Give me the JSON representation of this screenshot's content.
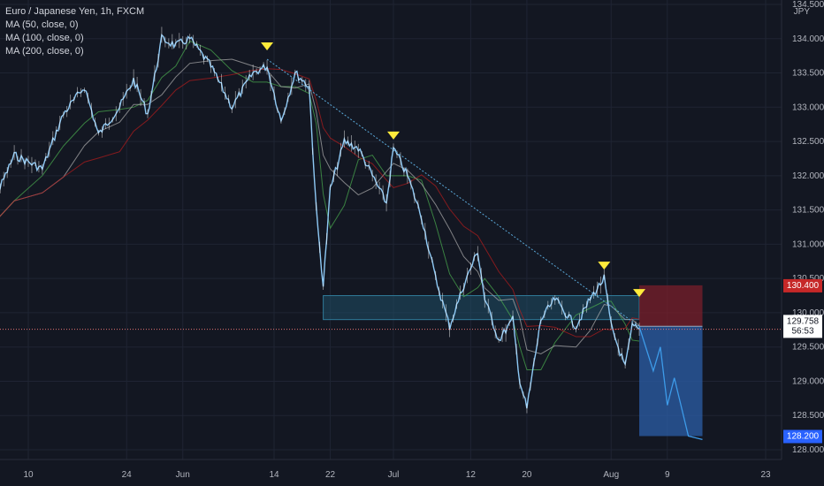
{
  "symbol_title": "Euro / Japanese Yen, 1h, FXCM",
  "indicators": [
    "MA (50, close, 0)",
    "MA (100, close, 0)",
    "MA (200, close, 0)"
  ],
  "currency_label": "JPY",
  "chart_data": {
    "type": "line",
    "title": "Euro / Japanese Yen, 1h, FXCM",
    "x_tick_labels": [
      "10",
      "24",
      "Jun",
      "14",
      "22",
      "Jul",
      "12",
      "20",
      "Aug",
      "9",
      "23"
    ],
    "y_tick_labels": [
      "134.500",
      "134.000",
      "133.500",
      "133.000",
      "132.500",
      "132.000",
      "131.500",
      "131.000",
      "130.500",
      "130.000",
      "129.500",
      "129.000",
      "128.500",
      "128.000"
    ],
    "ylim": [
      128.0,
      134.5
    ],
    "grid": true,
    "price_series": {
      "name": "EURJPY",
      "x": [
        "May 3",
        "May 5",
        "May 8",
        "May 12",
        "May 15",
        "May 18",
        "May 20",
        "May 23",
        "May 25",
        "May 27",
        "May 29",
        "May 31",
        "Jun 2",
        "Jun 5",
        "Jun 8",
        "Jun 11",
        "Jun 13",
        "Jun 15",
        "Jun 17",
        "Jun 19",
        "Jun 20",
        "Jun 21",
        "Jun 22",
        "Jun 24",
        "Jun 26",
        "Jun 28",
        "Jun 30",
        "Jul 1",
        "Jul 3",
        "Jul 5",
        "Jul 7",
        "Jul 9",
        "Jul 11",
        "Jul 13",
        "Jul 14",
        "Jul 16",
        "Jul 18",
        "Jul 19",
        "Jul 20",
        "Jul 22",
        "Jul 24",
        "Jul 27",
        "Jul 29",
        "Jul 31",
        "Aug 1",
        "Aug 3",
        "Aug 4",
        "Aug 5"
      ],
      "values": [
        131.0,
        131.6,
        132.3,
        132.1,
        132.9,
        133.3,
        132.6,
        133.0,
        133.4,
        132.9,
        134.0,
        133.9,
        134.0,
        133.6,
        133.0,
        133.5,
        133.6,
        132.8,
        133.5,
        133.3,
        131.5,
        130.4,
        131.8,
        132.5,
        132.4,
        132.0,
        131.6,
        132.4,
        132.0,
        131.4,
        130.5,
        129.8,
        130.4,
        130.9,
        130.2,
        129.6,
        129.9,
        129.0,
        128.6,
        129.9,
        130.2,
        129.8,
        130.2,
        130.5,
        129.8,
        129.2,
        129.8,
        129.76
      ]
    },
    "moving_averages": [
      {
        "name": "MA (50, close, 0)",
        "color": "#4caf50"
      },
      {
        "name": "MA (100, close, 0)",
        "color": "#b0b0b0"
      },
      {
        "name": "MA (200, close, 0)",
        "color": "#b71c1c"
      }
    ],
    "trendline": {
      "from": {
        "x": "Jun 13",
        "y": 133.7
      },
      "to": {
        "x": "Aug 5",
        "y": 129.8
      }
    },
    "swing_high_markers": [
      {
        "x": "Jun 13",
        "y": 133.7
      },
      {
        "x": "Jul 1",
        "y": 132.4
      },
      {
        "x": "Jul 31",
        "y": 130.5
      },
      {
        "x": "Aug 5",
        "y": 130.1
      }
    ],
    "support_zone": {
      "x_start": "Jun 21",
      "x_end": "Aug 5",
      "y_top": 130.25,
      "y_bottom": 129.9
    },
    "short_position": {
      "entry": 129.803,
      "stop_loss": 130.4,
      "take_profit": 128.2,
      "x_start": "Aug 5",
      "x_end": "Aug 14"
    },
    "projection_path": {
      "x": [
        "Aug 5",
        "Aug 7",
        "Aug 8",
        "Aug 9",
        "Aug 10",
        "Aug 12",
        "Aug 14"
      ],
      "y": [
        129.8,
        129.15,
        129.5,
        128.65,
        129.05,
        128.2,
        128.15
      ]
    },
    "price_labels": {
      "stop": "130.400",
      "entry": "129.803",
      "current": "129.758",
      "countdown": "56:53",
      "target": "128.200"
    },
    "colors": {
      "background": "#131722",
      "candles": "#8ec9f5",
      "trendline": "#5aa8d8",
      "marker": "#ffeb3b",
      "stop_zone": "#7a1f2b",
      "target_zone": "#2a5aa0",
      "support_zone": "#1f4f66"
    }
  }
}
